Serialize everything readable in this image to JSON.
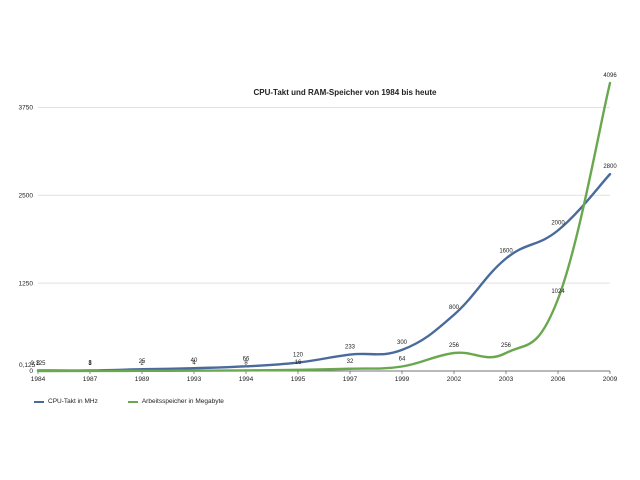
{
  "chart_data": {
    "type": "line",
    "title": "CPU-Takt und RAM-Speicher von 1984 bis heute",
    "categories": [
      "1984",
      "1987",
      "1989",
      "1993",
      "1994",
      "1995",
      "1997",
      "1999",
      "2002",
      "2003",
      "2006",
      "2009"
    ],
    "ylim": [
      0,
      4096
    ],
    "yticks": [
      {
        "value": 0,
        "label": "0"
      },
      {
        "value": 1250,
        "label": "1250"
      },
      {
        "value": 2500,
        "label": "2500"
      },
      {
        "value": 3750,
        "label": "3750"
      }
    ],
    "ytick_extra_label": "0,125",
    "grid": true,
    "legend_position": "bottom-left",
    "series": [
      {
        "name": "CPU-Takt in MHz",
        "color": "#4a6a9c",
        "values": [
          8,
          8,
          25,
          40,
          66,
          120,
          233,
          300,
          800,
          1600,
          2000,
          2800
        ],
        "labels": [
          "8",
          "8",
          "25",
          "40",
          "66",
          "120",
          "233",
          "300",
          "800",
          "1600",
          "2000",
          "2800"
        ]
      },
      {
        "name": "Arbeitsspeicher in Megabyte",
        "color": "#6aa84f",
        "values": [
          0.125,
          1,
          2,
          4,
          8,
          16,
          32,
          64,
          256,
          256,
          1024,
          4096
        ],
        "labels": [
          "0,125",
          "1",
          "2",
          "4",
          "8",
          "16",
          "32",
          "64",
          "256",
          "256",
          "1024",
          "4096"
        ]
      }
    ]
  }
}
